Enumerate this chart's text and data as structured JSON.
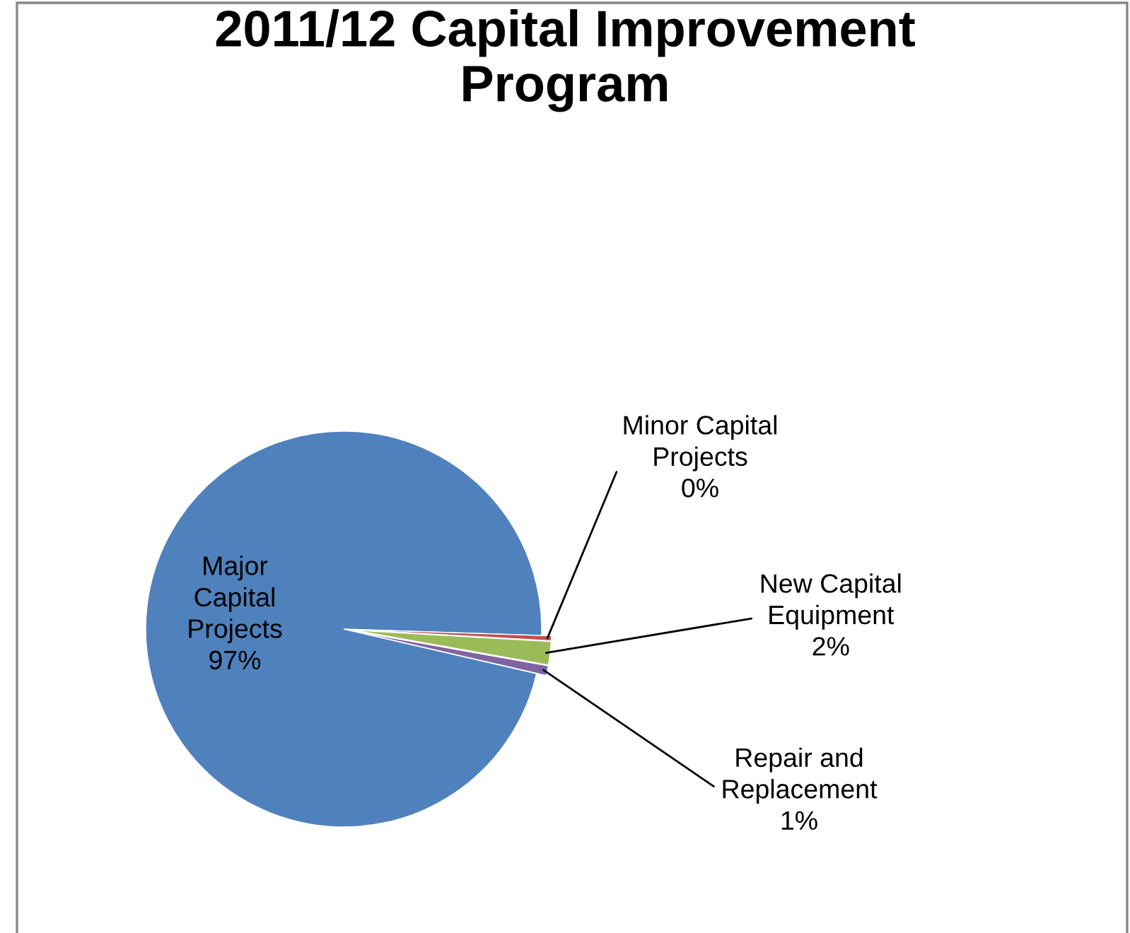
{
  "chart_data": {
    "type": "pie",
    "title": "2011/12 Capital Improvement Program",
    "categories": [
      "Major Capital Projects",
      "Minor Capital Projects",
      "New Capital Equipment",
      "Repair and Replacement"
    ],
    "values": [
      96.9,
      0.4,
      1.9,
      0.8
    ],
    "value_labels": [
      "97%",
      "0%",
      "2%",
      "1%"
    ],
    "colors": [
      "#4f81bd",
      "#c0504d",
      "#9bbb59",
      "#8064a2"
    ]
  }
}
